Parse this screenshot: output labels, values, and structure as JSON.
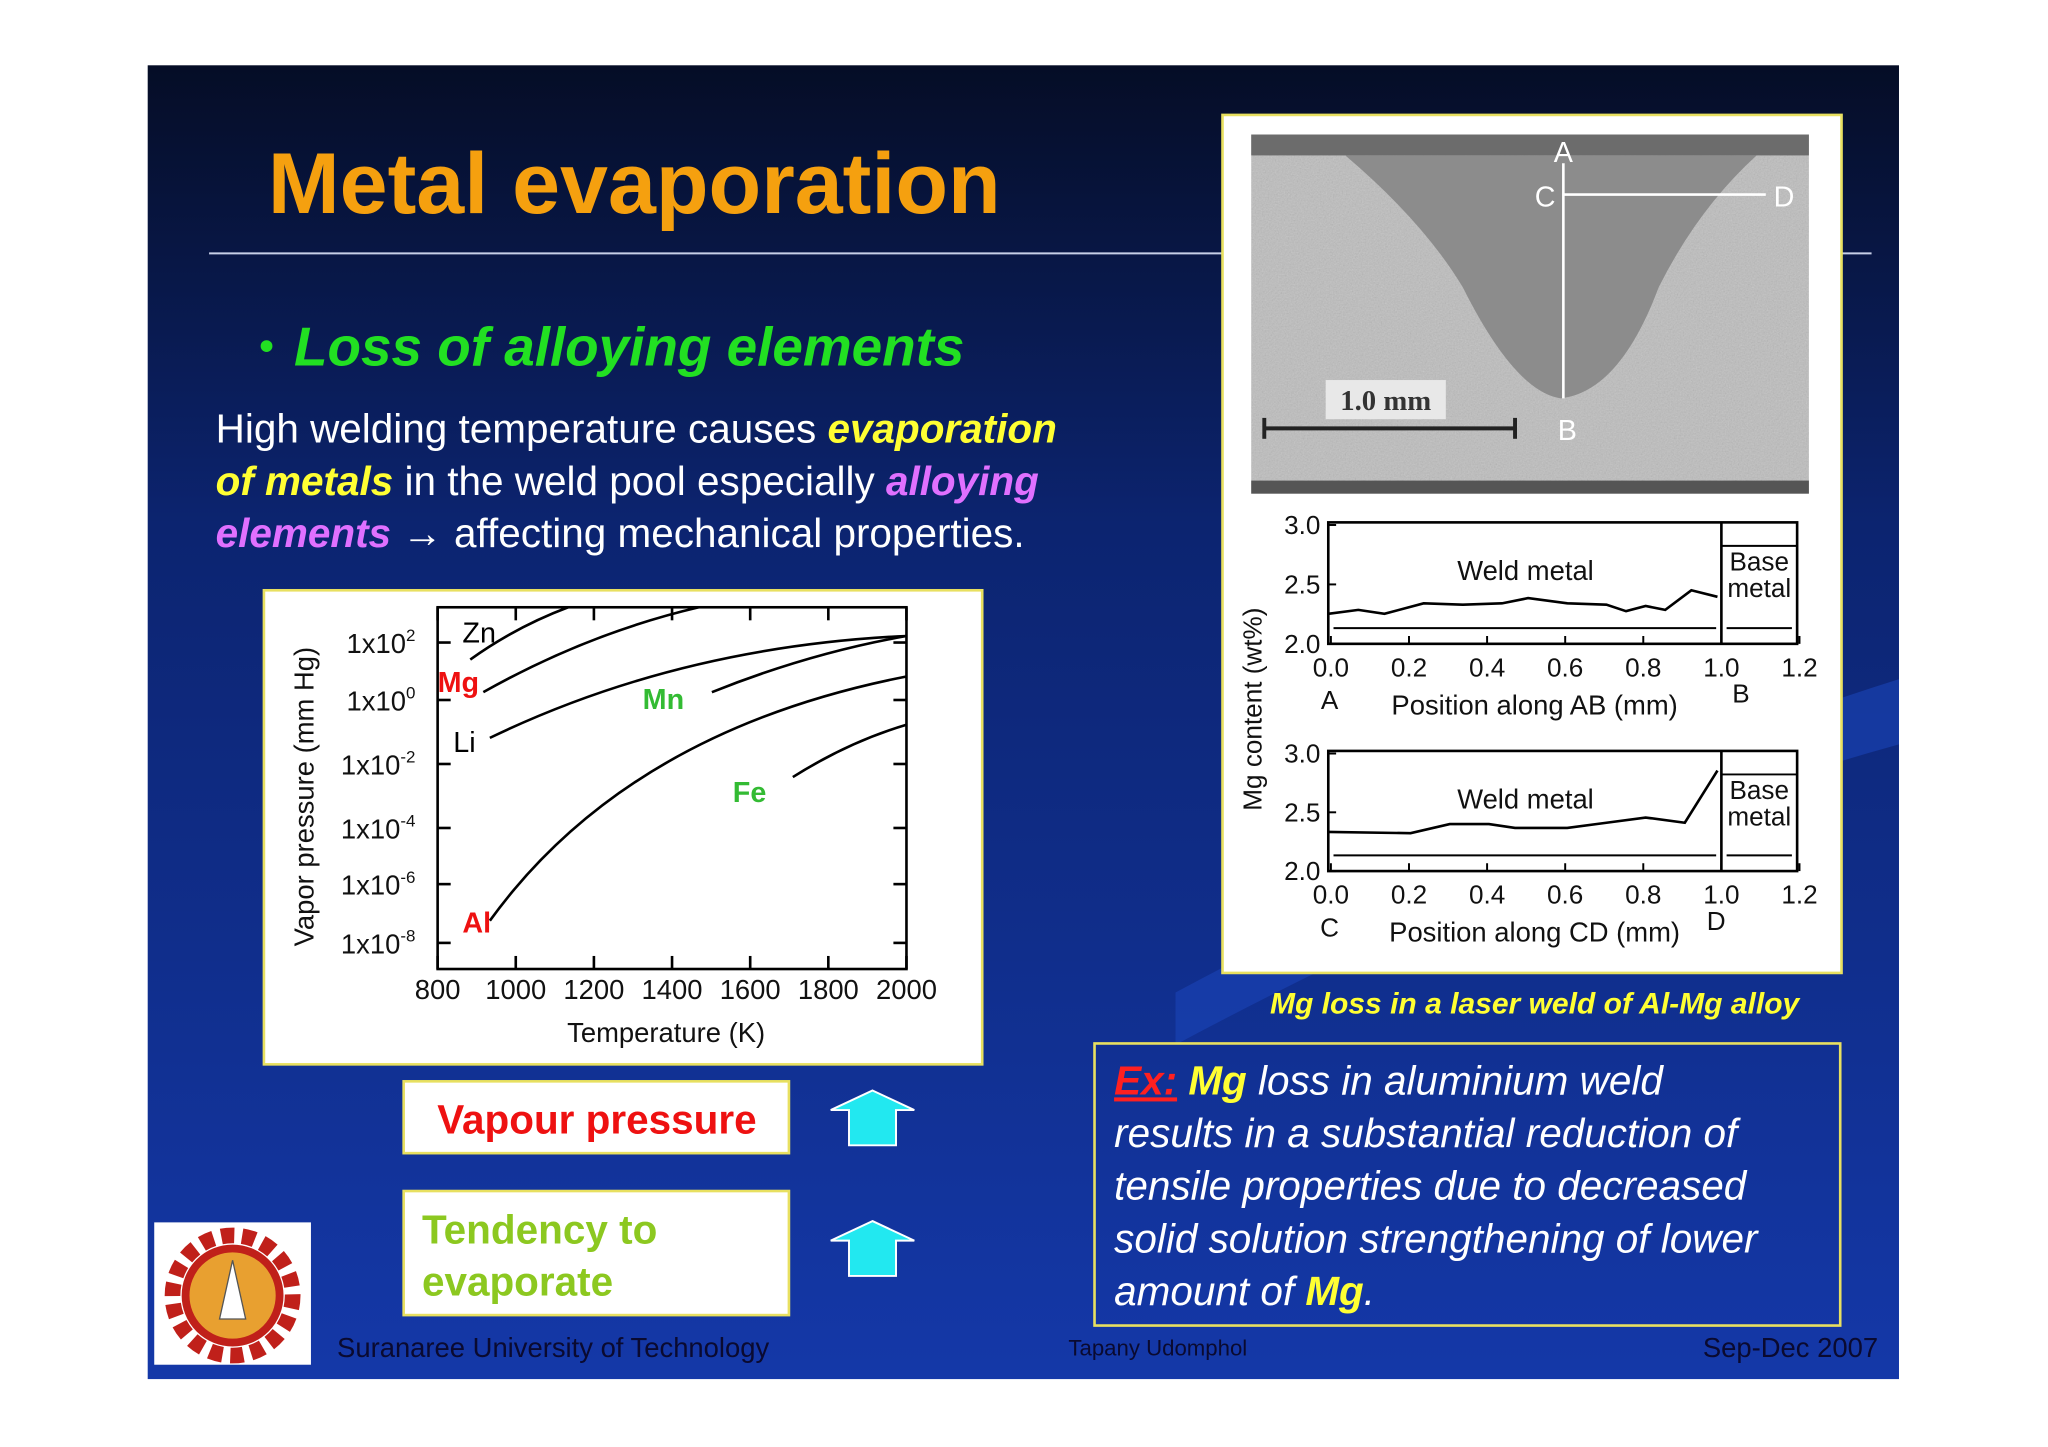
{
  "slide": {
    "title": "Metal evaporation",
    "bullet": "Loss of alloying elements",
    "paragraph": [
      [
        {
          "text": "High welding temperature causes ",
          "style": "plain"
        },
        {
          "text": "evaporation",
          "style": "yellow"
        }
      ],
      [
        {
          "text": "of metals",
          "style": "yellow"
        },
        {
          "text": " in the weld pool especially ",
          "style": "plain"
        },
        {
          "text": "alloying",
          "style": "magenta"
        }
      ],
      [
        {
          "text": "elements",
          "style": "magenta"
        },
        {
          "text": " → affecting mechanical properties.",
          "style": "plain"
        }
      ]
    ],
    "vapor_chart": {
      "y_label": "Vapor pressure (mm Hg)",
      "x_label": "Temperature (K)",
      "yticks": [
        {
          "base": "1x10",
          "exp": "2"
        },
        {
          "base": "1x10",
          "exp": "0"
        },
        {
          "base": "1x10",
          "exp": "-2"
        },
        {
          "base": "1x10",
          "exp": "-4"
        },
        {
          "base": "1x10",
          "exp": "-6"
        },
        {
          "base": "1x10",
          "exp": "-8"
        }
      ],
      "xticks": [
        "800",
        "1000",
        "1200",
        "1400",
        "1600",
        "1800",
        "2000"
      ],
      "curve_labels": [
        {
          "text": "Zn",
          "color": "#000000"
        },
        {
          "text": "Mg",
          "color": "#ee1111"
        },
        {
          "text": "Li",
          "color": "#000000"
        },
        {
          "text": "Mn",
          "color": "#33bb33"
        },
        {
          "text": "Fe",
          "color": "#33bb33"
        },
        {
          "text": "Al",
          "color": "#ee1111"
        }
      ]
    },
    "vapour_box": "Vapour pressure",
    "tendency_box": [
      "Tendency to",
      "evaporate"
    ],
    "mg_figure": {
      "micrograph_labels": [
        "A",
        "C",
        "D",
        "B"
      ],
      "scale": "1.0 mm",
      "y_label": "Mg content (wt%)",
      "plots": [
        {
          "yticks": [
            "3.0",
            "2.5",
            "2.0"
          ],
          "xticks": [
            "0.0",
            "0.2",
            "0.4",
            "0.6",
            "0.8",
            "1.0",
            "1.2"
          ],
          "start": "A",
          "end": "B",
          "x_label": "Position along AB (mm)",
          "weld": "Weld metal",
          "base": [
            "Base",
            "metal"
          ]
        },
        {
          "yticks": [
            "3.0",
            "2.5",
            "2.0"
          ],
          "xticks": [
            "0.0",
            "0.2",
            "0.4",
            "0.6",
            "0.8",
            "1.0",
            "1.2"
          ],
          "start": "C",
          "end": "D",
          "x_label": "Position along CD (mm)",
          "weld": "Weld metal",
          "base": [
            "Base",
            "metal"
          ]
        }
      ],
      "caption": "Mg loss in a laser weld of Al-Mg alloy"
    },
    "example": [
      [
        {
          "text": "Ex:",
          "style": "ex-red"
        },
        {
          "text": " ",
          "style": "ex-plain"
        },
        {
          "text": "Mg",
          "style": "ex-mg"
        },
        {
          "text": " loss in aluminium weld",
          "style": "ex-plain"
        }
      ],
      [
        {
          "text": "results in a substantial reduction of",
          "style": "ex-plain"
        }
      ],
      [
        {
          "text": "tensile properties due to decreased",
          "style": "ex-plain"
        }
      ],
      [
        {
          "text": "solid solution strengthening of lower",
          "style": "ex-plain"
        }
      ],
      [
        {
          "text": "amount of ",
          "style": "ex-plain"
        },
        {
          "text": "Mg",
          "style": "ex-mg"
        },
        {
          "text": ".",
          "style": "ex-plain"
        }
      ]
    ],
    "footer": {
      "institution": "Suranaree University of Technology",
      "author": "Tapany  Udomphol",
      "date": "Sep-Dec  2007"
    }
  }
}
